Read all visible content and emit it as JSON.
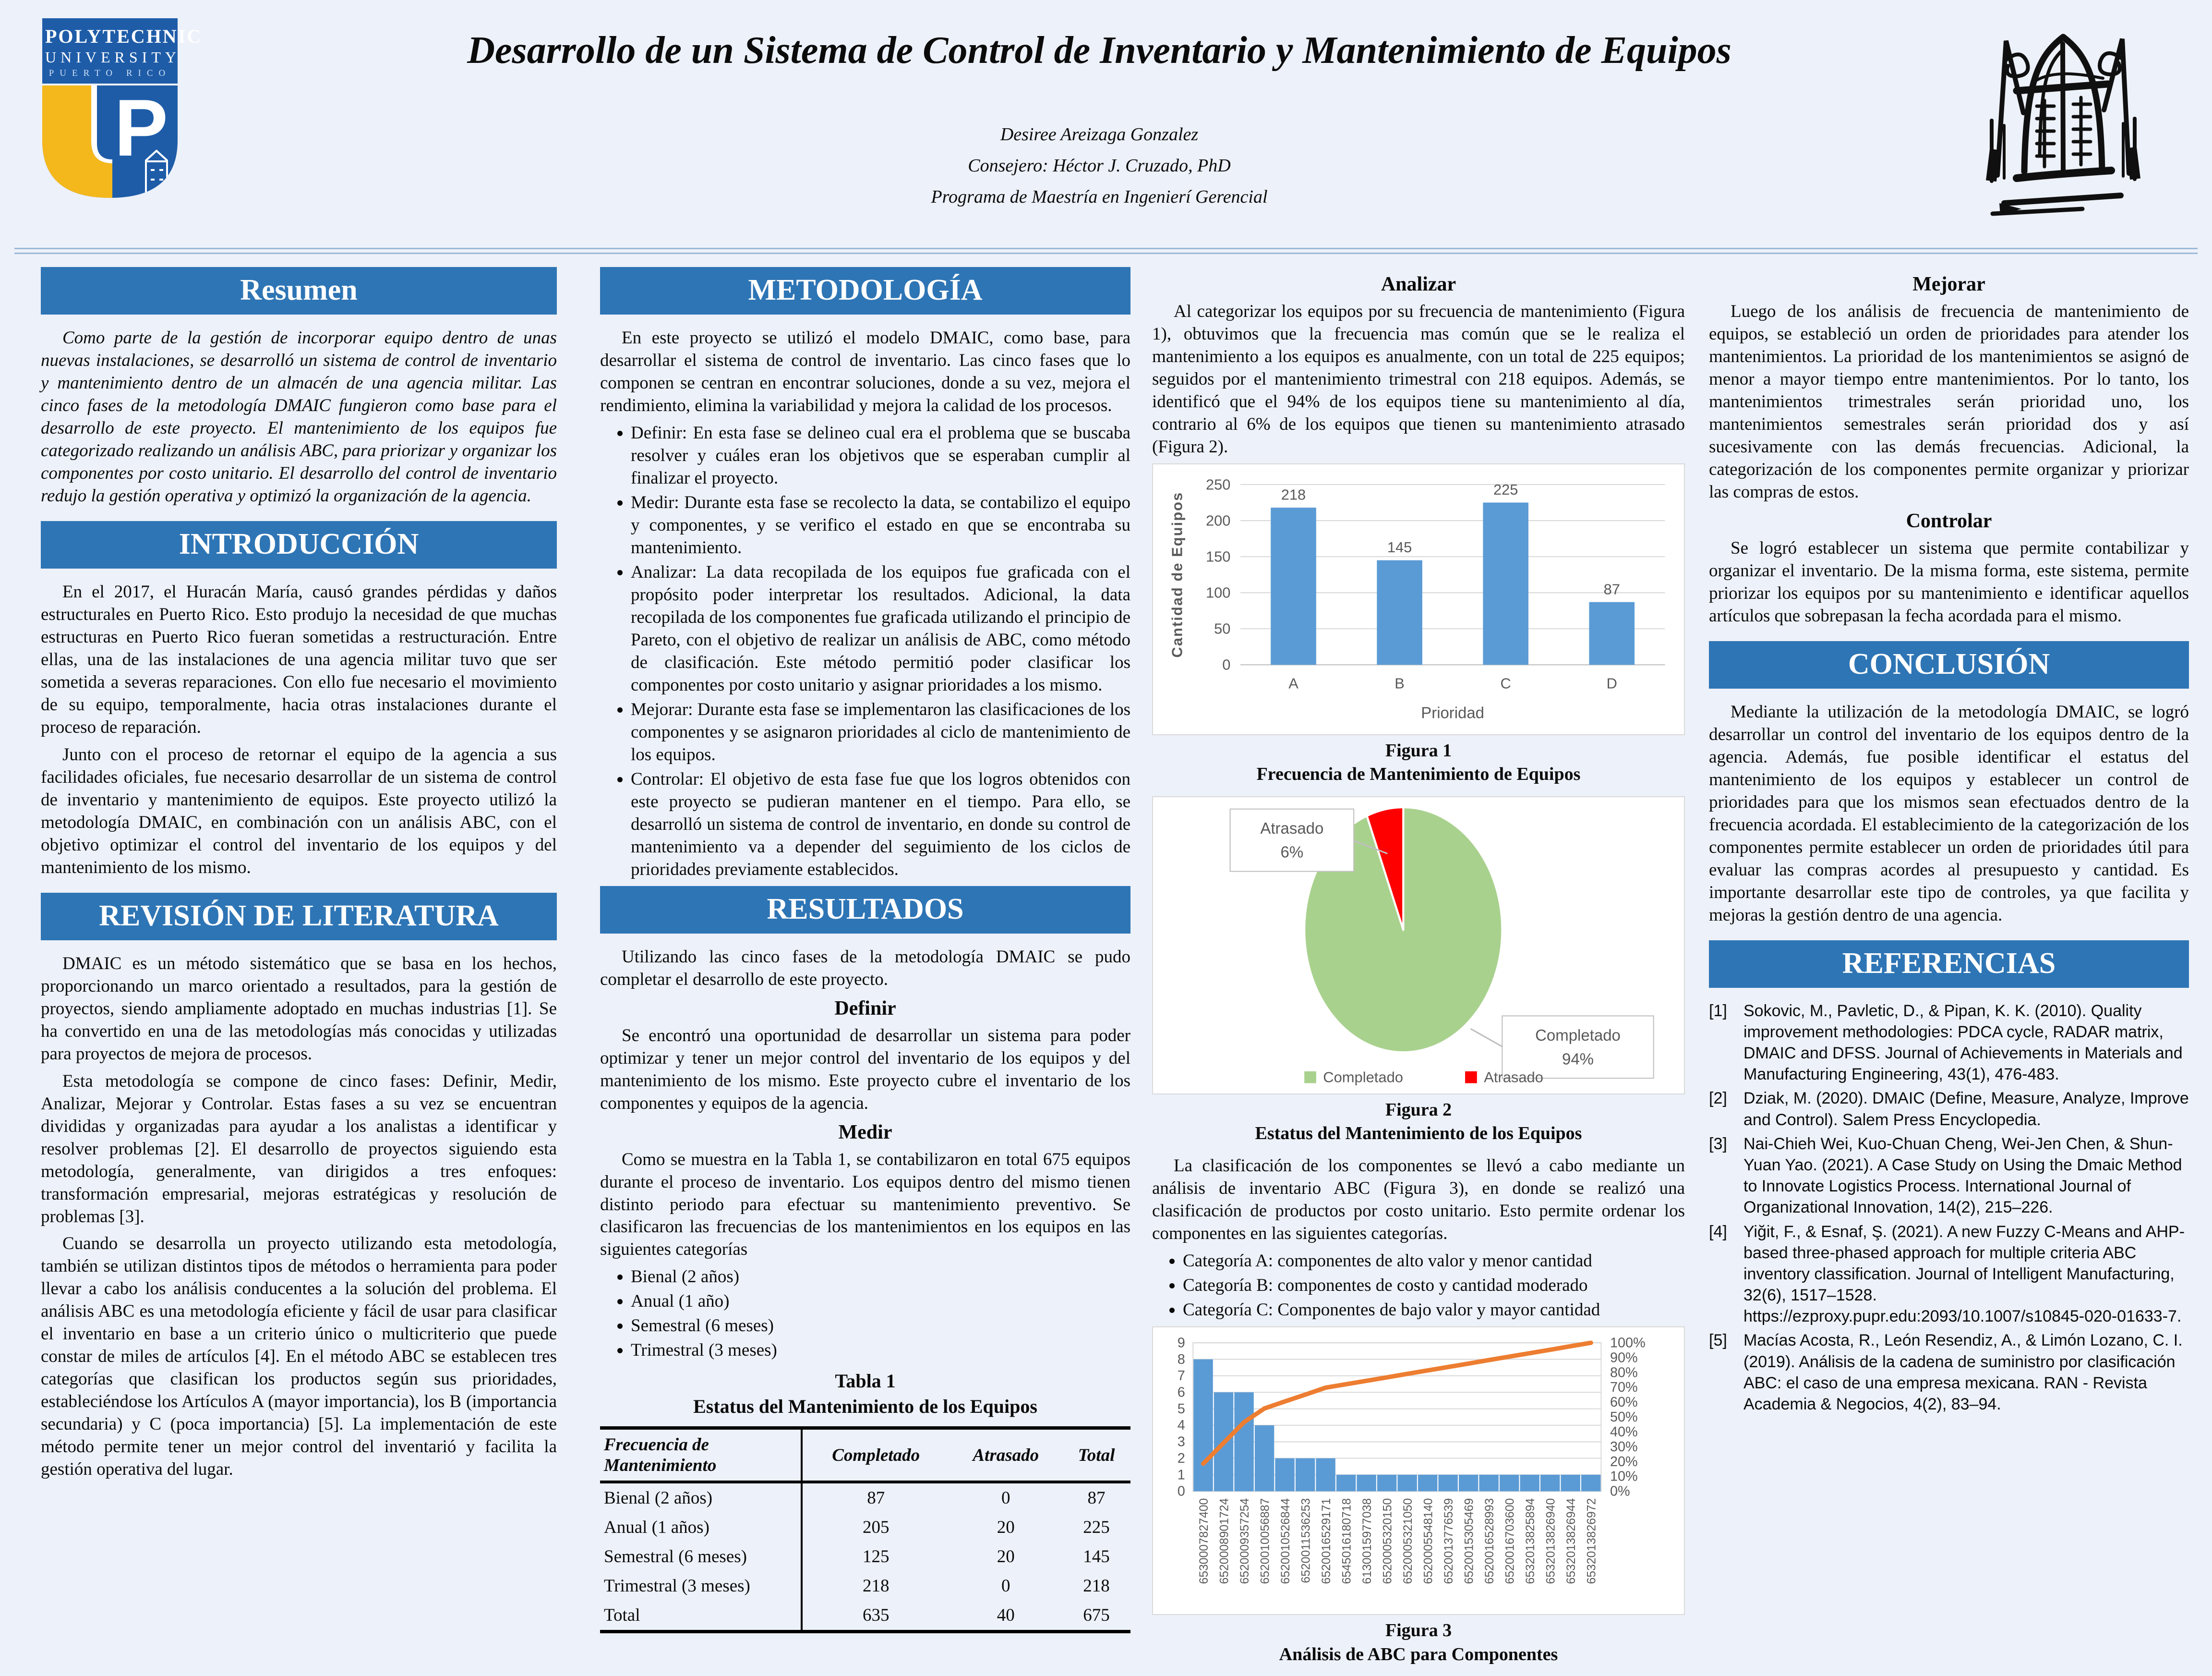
{
  "header": {
    "title": "Desarrollo de un Sistema de Control de Inventario y Mantenimiento de Equipos",
    "author": "Desiree Areizaga Gonzalez",
    "advisor": "Consejero: Héctor J. Cruzado, PhD",
    "program": "Programa de Maestría en Ingenierí Gerencial"
  },
  "logo": {
    "line1": "POLYTECHNIC",
    "line2": "UNIVERSITY",
    "line3": "PUERTO RICO",
    "monogram": "P"
  },
  "colors": {
    "section_bar": "#2e75b5",
    "bar_fill": "#5B9BD5",
    "pie_green": "#A9D18E",
    "pie_red": "#FF0000",
    "pareto_line": "#ED7D31",
    "background": "#edf1f9"
  },
  "sections": {
    "resumen": {
      "title": "Resumen",
      "body": "Como parte de la gestión de incorporar equipo dentro de unas nuevas instalaciones, se desarrolló un sistema de control de inventario y mantenimiento dentro de un almacén de una agencia militar.  Las cinco fases de la metodología DMAIC fungieron como base para el desarrollo de este proyecto. El mantenimiento de los equipos fue categorizado realizando un análisis ABC, para priorizar y organizar los componentes por costo unitario.  El desarrollo del control de inventario redujo la gestión operativa y optimizó la organización de la agencia."
    },
    "introduccion": {
      "title": "INTRODUCCIÓN",
      "p1": "En el 2017, el Huracán María, causó grandes pérdidas y daños estructurales en Puerto Rico. Esto produjo la necesidad de que muchas estructuras en Puerto Rico fueran sometidas a restructuración. Entre ellas, una de las instalaciones de una agencia militar tuvo que ser sometida a severas reparaciones. Con ello fue necesario el movimiento de su equipo, temporalmente, hacia otras instalaciones durante el proceso de reparación.",
      "p2": "Junto con el proceso de retornar el equipo de la agencia a sus facilidades oficiales, fue necesario desarrollar de un sistema de control de inventario y mantenimiento de equipos. Este proyecto utilizó la metodología DMAIC, en combinación con un análisis ABC, con el objetivo optimizar el control del inventario de los equipos y del mantenimiento de los mismo."
    },
    "revision": {
      "title": "REVISIÓN DE LITERATURA",
      "p1": "DMAIC es un método sistemático que se basa en los hechos, proporcionando un marco orientado a resultados, para la gestión de proyectos, siendo ampliamente adoptado en muchas industrias [1]. Se ha convertido en una de las metodologías más conocidas y utilizadas para proyectos de mejora de procesos.",
      "p2": "Esta metodología se compone de cinco fases: Definir, Medir, Analizar, Mejorar y Controlar. Estas fases a su vez se encuentran divididas y organizadas para ayudar a los analistas a identificar y resolver problemas [2]. El desarrollo de proyectos siguiendo esta metodología, generalmente, van dirigidos a tres enfoques: transformación empresarial, mejoras estratégicas y resolución de problemas [3].",
      "p3": "Cuando se desarrolla un proyecto utilizando esta metodología, también se utilizan distintos tipos de métodos o herramienta para poder llevar a cabo los análisis conducentes a la solución del problema. El análisis ABC es una metodología eficiente y fácil de usar para clasificar el inventario en base a un criterio único o multicriterio que puede constar de miles de artículos [4]. En el método ABC se establecen tres categorías que clasifican los productos según sus prioridades, estableciéndose los Artículos A (mayor importancia), los B (importancia secundaria) y C (poca importancia) [5]. La implementación de este método permite tener un mejor control del inventarió y facilita la gestión operativa del lugar."
    },
    "metodologia": {
      "title": "METODOLOGÍA",
      "intro": "En este proyecto se utilizó el modelo DMAIC, como base, para desarrollar el sistema de control de inventario. Las cinco fases que lo componen se centran en encontrar soluciones, donde a su vez, mejora el rendimiento, elimina la variabilidad y mejora la calidad de los procesos.",
      "bullets": [
        "Definir: En esta fase se delineo cual era el problema que se buscaba resolver y cuáles eran los objetivos que se esperaban cumplir al finalizar el proyecto.",
        "Medir: Durante esta fase se recolecto la data, se contabilizo el equipo y componentes, y se verifico el estado en que se encontraba su mantenimiento.",
        "Analizar: La data recopilada de los equipos fue graficada con el propósito poder interpretar los resultados. Adicional, la data recopilada de los componentes fue graficada utilizando el principio de Pareto, con el objetivo de realizar un análisis de ABC, como método de clasificación. Este método permitió poder clasificar los componentes por costo unitario y asignar prioridades a los mismo.",
        "Mejorar: Durante esta fase se implementaron las clasificaciones de los componentes y se asignaron prioridades al ciclo de mantenimiento de los equipos.",
        "Controlar: El objetivo de esta fase fue que los logros obtenidos con este proyecto se pudieran mantener en el tiempo. Para ello, se desarrolló un sistema de control de inventario, en donde su control de mantenimiento va a depender del seguimiento de los ciclos de prioridades previamente establecidos."
      ]
    },
    "resultados": {
      "title": "RESULTADOS",
      "intro": "Utilizando las cinco fases de la metodología DMAIC se pudo completar el desarrollo de este proyecto.",
      "definir_heading": "Definir",
      "definir_text": "Se encontró una oportunidad de desarrollar un sistema para poder optimizar y tener un mejor control del inventario de los equipos y del mantenimiento de los mismo.  Este proyecto cubre el inventario de los componentes y equipos de la agencia.",
      "medir_heading": "Medir",
      "medir_text": "Como se muestra en la Tabla 1, se contabilizaron en total 675 equipos durante el proceso de inventario. Los equipos dentro del mismo tienen distinto periodo para efectuar su mantenimiento preventivo. Se clasificaron las frecuencias de los mantenimientos en los equipos en las siguientes categorías",
      "medir_bullets": [
        "Bienal (2 años)",
        "Anual (1 año)",
        "Semestral (6 meses)",
        "Trimestral (3 meses)"
      ]
    },
    "analizar": {
      "heading": "Analizar",
      "text": "Al categorizar los equipos por su frecuencia de mantenimiento (Figura 1), obtuvimos que la frecuencia mas común que se le realiza el mantenimiento a los equipos es  anualmente, con un total de 225 equipos; seguidos por el mantenimiento trimestral con 218 equipos. Además, se identificó que el 94% de los equipos tiene su mantenimiento al día, contrario al 6% de los equipos que tienen su mantenimiento atrasado (Figura 2)."
    },
    "componentes": {
      "text": "La clasificación de los componentes se llevó a cabo mediante un análisis de inventario ABC (Figura 3), en donde se realizó una clasificación de productos por costo unitario.  Esto permite ordenar los componentes en las siguientes categorías.",
      "bullets": [
        "Categoría A: componentes de alto valor y menor cantidad",
        "Categoría B: componentes de costo y cantidad moderado",
        "Categoría C: Componentes de bajo valor y mayor cantidad"
      ]
    },
    "mejorar": {
      "heading": "Mejorar",
      "text": "Luego de los análisis de frecuencia de mantenimiento de equipos, se estableció un orden de prioridades para atender los mantenimientos. La prioridad de los mantenimientos se asignó de menor a mayor tiempo entre mantenimientos. Por lo tanto, los mantenimientos trimestrales serán prioridad uno, los mantenimientos semestrales serán prioridad dos y así sucesivamente con las demás frecuencias. Adicional, la categorización de los componentes permite organizar y priorizar las compras de estos."
    },
    "controlar": {
      "heading": "Controlar",
      "text": "Se logró establecer un sistema que permite contabilizar y organizar el inventario. De la misma forma, este sistema, permite priorizar los equipos por su mantenimiento e identificar aquellos artículos que sobrepasan la fecha acordada para el mismo."
    },
    "conclusion": {
      "title": "CONCLUSIÓN",
      "text": "Mediante la utilización de la metodología DMAIC, se logró desarrollar un control del inventario de los equipos dentro de la agencia.  Además, fue posible identificar el estatus del mantenimiento de los equipos y establecer un control de prioridades para que los mismos sean efectuados dentro de la frecuencia acordada.   El establecimiento de la categorización de los componentes permite establecer un orden de prioridades útil para evaluar las compras acordes al presupuesto y cantidad. Es importante desarrollar este tipo de controles, ya que facilita y mejoras la gestión dentro de una agencia."
    },
    "referencias": {
      "title": "REFERENCIAS",
      "items": [
        {
          "num": "[1]",
          "text": "Sokovic, M., Pavletic, D., & Pipan, K. K. (2010). Quality improvement methodologies: PDCA cycle, RADAR matrix, DMAIC and DFSS. Journal of Achievements in Materials and Manufacturing Engineering, 43(1), 476-483."
        },
        {
          "num": "[2]",
          "text": "Dziak, M. (2020). DMAIC (Define, Measure, Analyze, Improve and Control). Salem Press Encyclopedia."
        },
        {
          "num": "[3]",
          "text": "Nai-Chieh Wei, Kuo-Chuan Cheng, Wei-Jen Chen, & Shun-Yuan Yao. (2021). A Case Study on Using the Dmaic Method to Innovate Logistics Process. International Journal of Organizational Innovation, 14(2), 215–226."
        },
        {
          "num": "[4]",
          "text": "Yiğit, F., & Esnaf, Ş. (2021). A new Fuzzy C-Means and AHP-based three-phased approach for multiple criteria ABC inventory classification. Journal of Intelligent Manufacturing, 32(6), 1517–1528. https://ezproxy.pupr.edu:2093/10.1007/s10845-020-01633-7."
        },
        {
          "num": "[5]",
          "text": "Macías Acosta, R., León Resendiz, A., & Limón Lozano, C. I. (2019). Análisis de la cadena de suministro por clasificación ABC: el caso de una empresa mexicana. RAN - Revista Academia & Negocios, 4(2), 83–94."
        }
      ]
    }
  },
  "tabla": {
    "label": "Tabla 1",
    "title": "Estatus del Mantenimiento de los Equipos",
    "headers": [
      "Frecuencia de Mantenimiento",
      "Completado",
      "Atrasado",
      "Total"
    ],
    "rows": [
      [
        "Bienal (2 años)",
        "87",
        "0",
        "87"
      ],
      [
        "Anual (1 años)",
        "205",
        "20",
        "225"
      ],
      [
        "Semestral (6 meses)",
        "125",
        "20",
        "145"
      ],
      [
        "Trimestral (3 meses)",
        "218",
        "0",
        "218"
      ],
      [
        "Total",
        "635",
        "40",
        "675"
      ]
    ]
  },
  "chart_data": [
    {
      "id": "fig1",
      "type": "bar",
      "title": "Figura 1",
      "caption": "Frecuencia de Mantenimiento de Equipos",
      "categories": [
        "A",
        "B",
        "C",
        "D"
      ],
      "values": [
        218,
        145,
        225,
        87
      ],
      "xlabel": "Prioridad",
      "ylabel": "Cantidad de Equipos",
      "ylim": [
        0,
        250
      ],
      "ytick_step": 50,
      "grid": true,
      "bar_color": "#5B9BD5"
    },
    {
      "id": "fig2",
      "type": "pie",
      "title": "Figura 2",
      "caption": "Estatus del Mantenimiento de los Equipos",
      "labels": [
        "Completado",
        "Atrasado"
      ],
      "values": [
        94,
        6
      ],
      "unit": "%",
      "colors": [
        "#A9D18E",
        "#FF0000"
      ],
      "callouts": [
        {
          "label": "Completado",
          "value": "94%"
        },
        {
          "label": "Atrasado",
          "value": "6%"
        }
      ],
      "legend_position": "bottom"
    },
    {
      "id": "fig3",
      "type": "pareto",
      "title": "Figura 3",
      "caption": "Análisis de ABC para Componentes",
      "categories": [
        "6530007827400",
        "6520008901724",
        "6520009357254",
        "6520010056887",
        "6520010526844",
        "6520011536253",
        "6520016529171",
        "6545016180718",
        "6130015977038",
        "6520005320150",
        "6520005321050",
        "6520005548140",
        "6520013776539",
        "6520015305469",
        "6520016528993",
        "6520016703600",
        "6532013825894",
        "6532013826940",
        "6532013826944",
        "6532013826972"
      ],
      "values": [
        8,
        6,
        6,
        4,
        2,
        2,
        2,
        1,
        1,
        1,
        1,
        1,
        1,
        1,
        1,
        1,
        1,
        1,
        1,
        1
      ],
      "cumulative_percent": [
        18.6,
        32.6,
        46.5,
        55.8,
        60.5,
        65.1,
        69.8,
        72.1,
        74.4,
        76.7,
        79.1,
        81.4,
        83.7,
        86.0,
        88.4,
        90.7,
        93.0,
        95.3,
        97.7,
        100.0
      ],
      "ylim_left": [
        0,
        9
      ],
      "ytick_left_step": 1,
      "ylim_right_percent": [
        0,
        100
      ],
      "ytick_right_step_percent": 10,
      "bar_color": "#5B9BD5",
      "line_color": "#ED7D31",
      "grid": true
    }
  ]
}
